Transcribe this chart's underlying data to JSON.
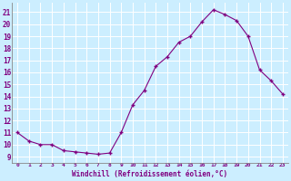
{
  "hours": [
    0,
    1,
    2,
    3,
    4,
    5,
    6,
    7,
    8,
    9,
    10,
    11,
    12,
    13,
    14,
    15,
    16,
    17,
    18,
    19,
    20,
    21,
    22,
    23
  ],
  "values": [
    11,
    10.3,
    10,
    10,
    9.5,
    9.4,
    9.3,
    9.2,
    9.3,
    11,
    13.3,
    14.5,
    16.5,
    17.3,
    18.5,
    19,
    20.2,
    21.2,
    20.8,
    20.3,
    19,
    16.2,
    15.3,
    14.2
  ],
  "line_color": "#800080",
  "marker": "+",
  "bg_color": "#cceeff",
  "grid_color": "#ffffff",
  "ylabel_ticks": [
    9,
    10,
    11,
    12,
    13,
    14,
    15,
    16,
    17,
    18,
    19,
    20,
    21
  ],
  "xlabel": "Windchill (Refroidissement éolien,°C)",
  "ylim": [
    8.5,
    21.8
  ],
  "xlim": [
    -0.5,
    23.5
  ]
}
